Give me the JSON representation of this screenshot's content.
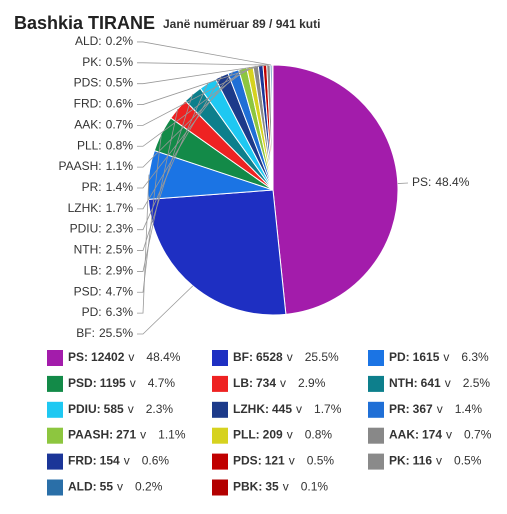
{
  "chart_data": {
    "type": "pie",
    "title": "Bashkia TIRANE",
    "subtitle": "Janë numëruar 89 / 941 kuti",
    "categories": [
      "PS",
      "BF",
      "PD",
      "PSD",
      "LB",
      "NTH",
      "PDIU",
      "LZHK",
      "PR",
      "PAASH",
      "PLL",
      "AAK",
      "FRD",
      "PDS",
      "PK",
      "ALD",
      "PBK"
    ],
    "values": [
      12402,
      6528,
      1615,
      1195,
      734,
      641,
      585,
      445,
      367,
      271,
      209,
      174,
      154,
      121,
      116,
      55,
      35
    ],
    "shares": [
      48.4,
      25.5,
      6.3,
      4.7,
      2.9,
      2.5,
      2.3,
      1.7,
      1.4,
      1.1,
      0.8,
      0.7,
      0.6,
      0.5,
      0.5,
      0.2,
      0.1
    ],
    "share_labels": [
      "48.4%",
      "25.5%",
      "6.3%",
      "4.7%",
      "2.9%",
      "2.5%",
      "2.3%",
      "1.7%",
      "1.4%",
      "1.1%",
      "0.8%",
      "0.7%",
      "0.6%",
      "0.5%",
      "0.5%",
      "0.2%",
      "0.1%"
    ],
    "colors": [
      "#a31cab",
      "#1e2fc2",
      "#1b74e4",
      "#138a48",
      "#ee2222",
      "#0d7f8c",
      "#1ec8f2",
      "#1c3a8a",
      "#1f6fd6",
      "#8dc63f",
      "#d6d21f",
      "#888888",
      "#1b3598",
      "#c00000",
      "#8a8a8a",
      "#2a6fa8",
      "#b30000"
    ],
    "separator": ":",
    "vote_unit": "v"
  }
}
